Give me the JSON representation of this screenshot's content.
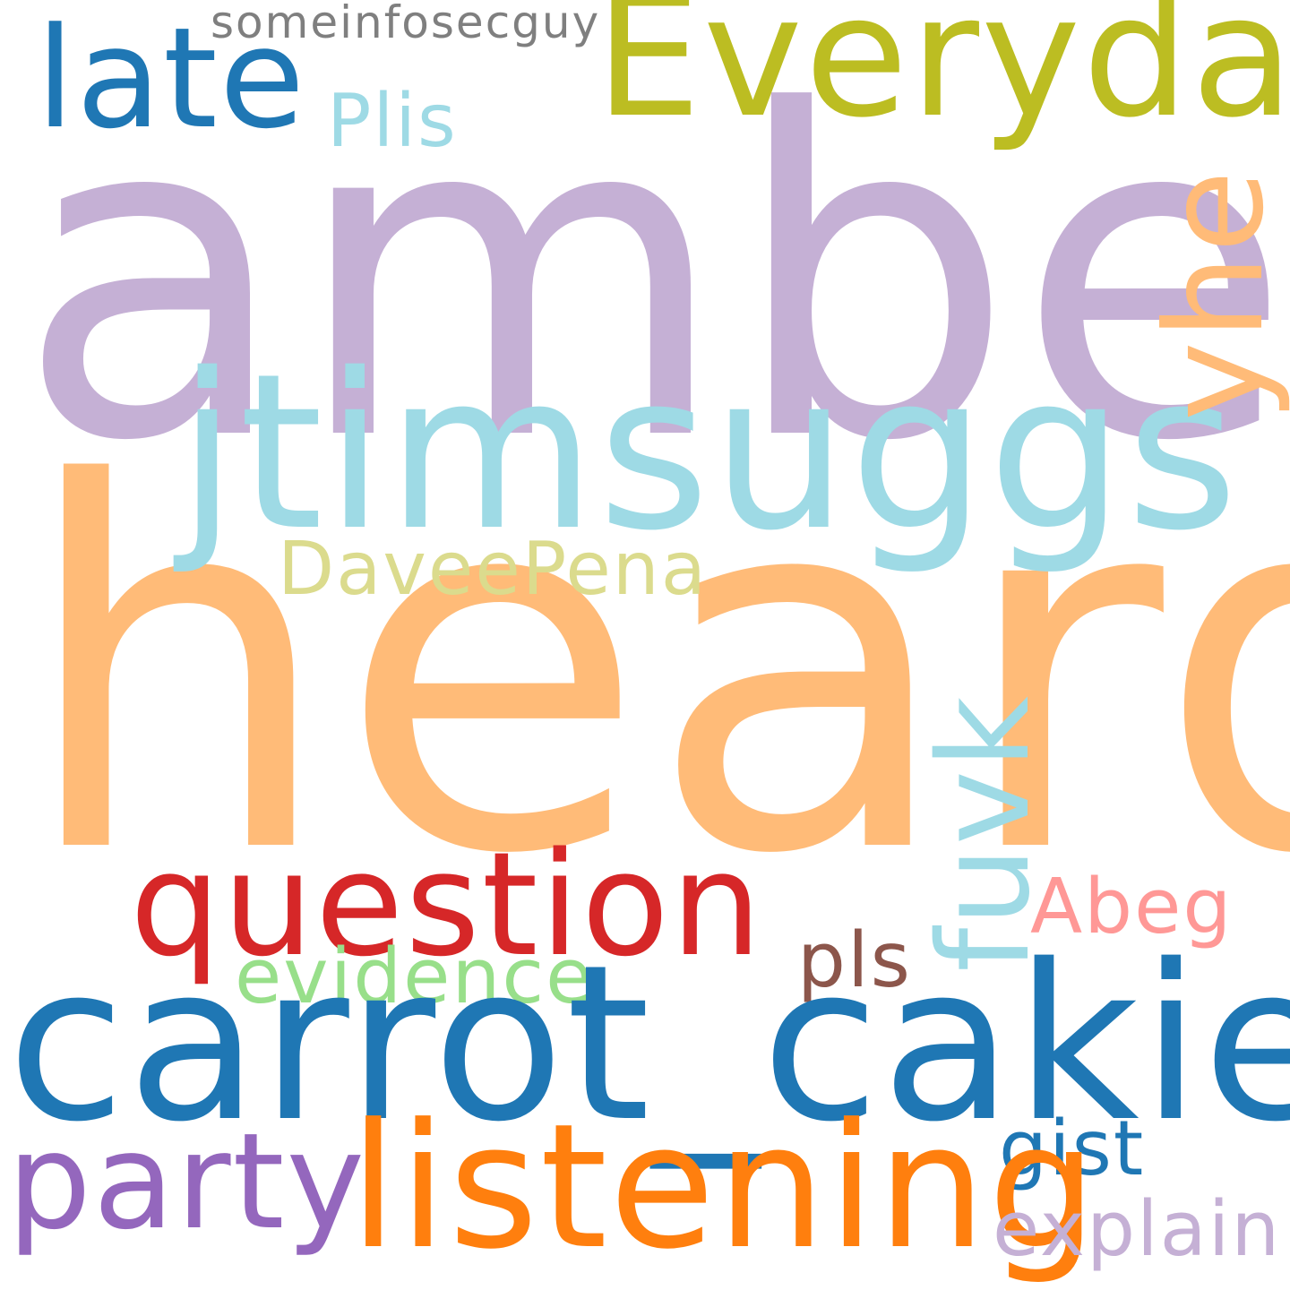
{
  "words": [
    {
      "key": "amber",
      "text": "amber",
      "color": "#c5b0d5"
    },
    {
      "key": "heard",
      "text": "heard",
      "color": "#ffbb78"
    },
    {
      "key": "jtims",
      "text": "jtimsuggs",
      "color": "#9edae5"
    },
    {
      "key": "every",
      "text": "Everyday",
      "color": "#bcbd22"
    },
    {
      "key": "late",
      "text": "late",
      "color": "#1f77b4"
    },
    {
      "key": "some",
      "text": "someinfosecguy",
      "color": "#7f7f7f"
    },
    {
      "key": "plis",
      "text": "Plis",
      "color": "#9edae5"
    },
    {
      "key": "yhe",
      "text": "yhe",
      "color": "#ffbb78"
    },
    {
      "key": "davee",
      "text": "DaveePena",
      "color": "#dbdb8d"
    },
    {
      "key": "fuvk",
      "text": "fuvk",
      "color": "#9edae5"
    },
    {
      "key": "question",
      "text": "question",
      "color": "#d62728"
    },
    {
      "key": "abeg",
      "text": "Abeg",
      "color": "#ff9896"
    },
    {
      "key": "pls",
      "text": "pls",
      "color": "#8c564b"
    },
    {
      "key": "evid",
      "text": "evidence",
      "color": "#98df8a"
    },
    {
      "key": "carrot",
      "text": "carrot_cakie",
      "color": "#1f77b4"
    },
    {
      "key": "gist",
      "text": "gist",
      "color": "#1f77b4"
    },
    {
      "key": "party",
      "text": "party",
      "color": "#9467bd"
    },
    {
      "key": "listen",
      "text": "listening",
      "color": "#ff7f0e"
    },
    {
      "key": "explain",
      "text": "explain",
      "color": "#c5b0d5"
    }
  ]
}
